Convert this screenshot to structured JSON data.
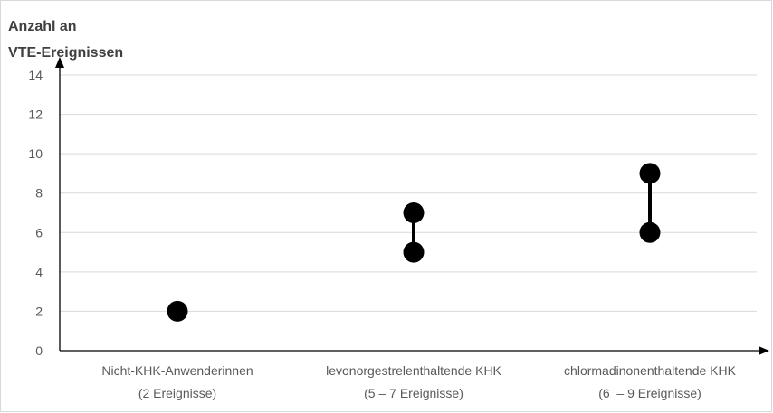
{
  "chart_data": {
    "type": "scatter",
    "y_title_lines": [
      "Anzahl an",
      "VTE-Ereignissen"
    ],
    "ylim": [
      0,
      14
    ],
    "y_ticks": [
      0,
      2,
      4,
      6,
      8,
      10,
      12,
      14
    ],
    "grid": true,
    "categories": [
      {
        "line1": "Nicht-KHK-Anwenderinnen",
        "line2": "(2 Ereignisse)"
      },
      {
        "line1": "levonorgestrelenthaltende KHK",
        "line2": "(5 – 7 Ereignisse)"
      },
      {
        "line1": "chlormadinonenthaltende KHK",
        "line2": "(6  – 9 Ereignisse)"
      }
    ],
    "ranges": [
      {
        "category": 0,
        "low": 2,
        "high": 2
      },
      {
        "category": 1,
        "low": 5,
        "high": 7
      },
      {
        "category": 2,
        "low": 6,
        "high": 9
      }
    ],
    "colors": {
      "points": "#000000",
      "gridlines": "#d9d9d9",
      "axis": "#000000"
    }
  }
}
